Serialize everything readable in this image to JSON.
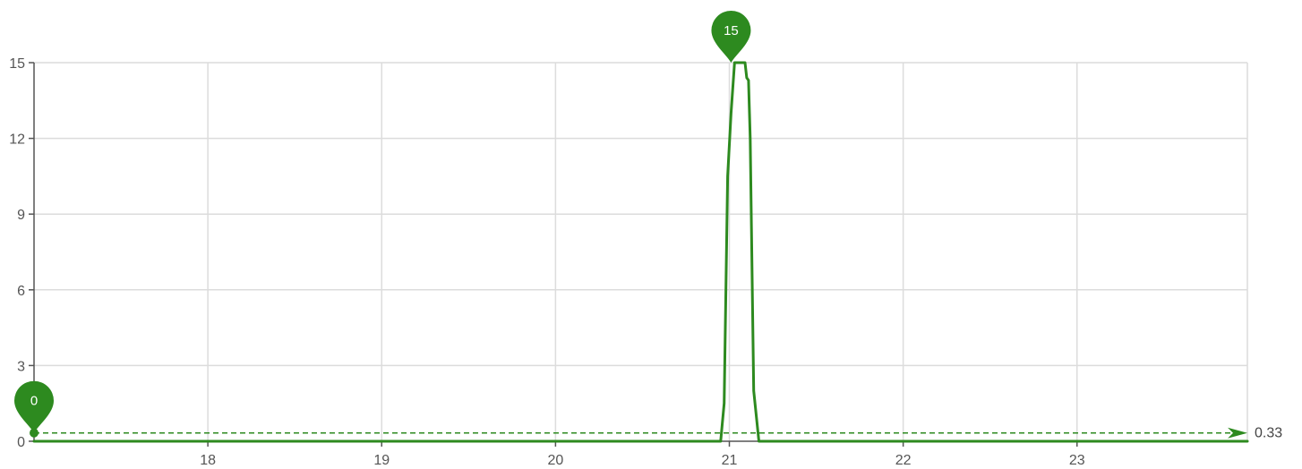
{
  "chart_data": {
    "type": "line",
    "title": "",
    "xlabel": "",
    "ylabel": "",
    "xlim": [
      17,
      23.98
    ],
    "ylim": [
      0,
      15
    ],
    "x_ticks": [
      "18",
      "19",
      "20",
      "21",
      "22",
      "23"
    ],
    "y_ticks": [
      "0",
      "3",
      "6",
      "9",
      "12",
      "15"
    ],
    "grid": true,
    "legend": "none",
    "series": [
      {
        "color": "#2d8a1f",
        "x": [
          17.0,
          20.9,
          20.95,
          20.97,
          20.99,
          21.01,
          21.03,
          21.07,
          21.09,
          21.1,
          21.11,
          21.12,
          21.14,
          21.17,
          21.2,
          22.0,
          23.0,
          23.98
        ],
        "y": [
          0,
          0,
          0,
          1.5,
          10.5,
          13.0,
          15.0,
          15.0,
          15.0,
          14.4,
          14.3,
          12.0,
          2.0,
          0,
          0,
          0,
          0,
          0
        ]
      }
    ],
    "mark_points": [
      {
        "label": "0",
        "x": 17.0,
        "y": 0.33,
        "color": "#2d8a1f"
      },
      {
        "label": "15",
        "x": 21.01,
        "y": 15,
        "color": "#2d8a1f"
      }
    ],
    "mark_line": {
      "label": "0.33",
      "value": 0.33,
      "style": "dashed",
      "color": "#2d8a1f"
    }
  }
}
